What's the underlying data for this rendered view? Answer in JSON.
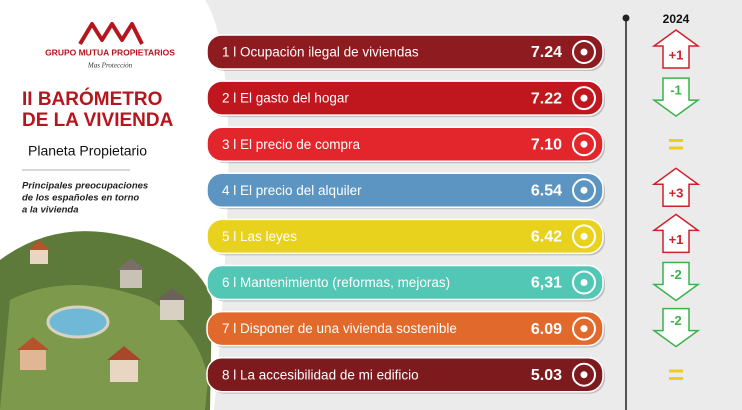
{
  "logo": {
    "name": "GRUPO MUTUA PROPIETARIOS",
    "tagline": "Mas Protección"
  },
  "header": {
    "title_line1": "II BARÓMETRO",
    "title_line2": "DE LA VIVIENDA",
    "subtitle": "Planeta Propietario",
    "description": [
      "Principales preocupaciones",
      "de los españoles en torno",
      "a la vivienda"
    ]
  },
  "year": "2024",
  "rows": [
    {
      "label": "1 l Ocupación ilegal de viviendas",
      "value": "7.24",
      "color": "#8e1b1f",
      "change": "+1"
    },
    {
      "label": "2 l El gasto del hogar",
      "value": "7.22",
      "color": "#c0161d",
      "change": "-1"
    },
    {
      "label": "3 l El precio de compra",
      "value": "7.10",
      "color": "#e2262c",
      "change": "="
    },
    {
      "label": "4 l El precio del alquiler",
      "value": "6.54",
      "color": "#5d95c2",
      "change": "+3"
    },
    {
      "label": "5 l Las leyes",
      "value": "6.42",
      "color": "#e9d21d",
      "change": "+1"
    },
    {
      "label": "6 l Mantenimiento (reformas, mejoras)",
      "value": "6,31",
      "color": "#52c7b5",
      "change": "-2"
    },
    {
      "label": "7 l Disponer de una vivienda sostenible",
      "value": "6.09",
      "color": "#e2692c",
      "change": "-2"
    },
    {
      "label": "8 l La accesibilidad de mi edificio",
      "value": "5.03",
      "color": "#7c1a1d",
      "change": "="
    }
  ]
}
